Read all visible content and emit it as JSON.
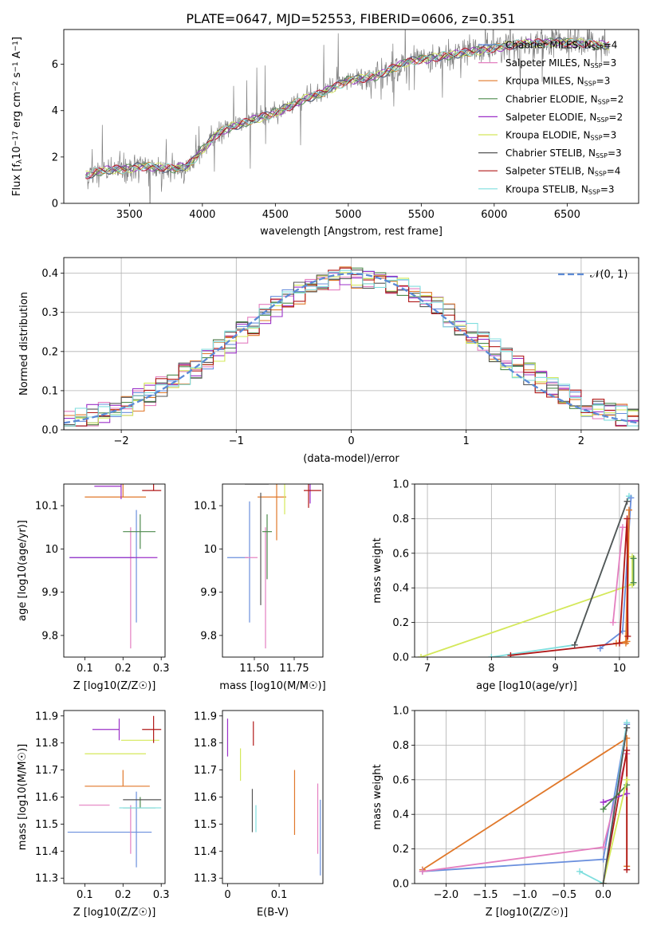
{
  "figure_title": "PLATE=0647, MJD=52553, FIBERID=0606, z=0.351",
  "series": [
    {
      "name": "Chabrier MILES",
      "nssp": "4",
      "color": "#6a8fdd"
    },
    {
      "name": "Salpeter MILES",
      "nssp": "3",
      "color": "#e47fc0"
    },
    {
      "name": "Kroupa MILES",
      "nssp": "3",
      "color": "#e0782a"
    },
    {
      "name": "Chabrier ELODIE",
      "nssp": "2",
      "color": "#4d8a4d"
    },
    {
      "name": "Salpeter ELODIE",
      "nssp": "2",
      "color": "#9b30c8"
    },
    {
      "name": "Kroupa ELODIE",
      "nssp": "3",
      "color": "#d4e85a"
    },
    {
      "name": "Chabrier STELIB",
      "nssp": "3",
      "color": "#555555"
    },
    {
      "name": "Salpeter STELIB",
      "nssp": "4",
      "color": "#b01818"
    },
    {
      "name": "Kroupa STELIB",
      "nssp": "3",
      "color": "#7fdede"
    }
  ],
  "spectrum_color": "#808080",
  "chart_data": [
    {
      "id": "spectrum",
      "type": "line",
      "title": "PLATE=0647, MJD=52553, FIBERID=0606, z=0.351",
      "xlabel": "wavelength [Angstrom, rest frame]",
      "ylabel_parts": {
        "pre": "Flux [f",
        "sub1": "λ",
        "mid": "10",
        "sup1": "−17",
        "post1": " erg cm",
        "sup2": "−2",
        "post2": " s",
        "sup3": "−1",
        "post3": " A",
        "sup4": "−1",
        "post4": "]"
      },
      "xlim": [
        3050,
        6990
      ],
      "ylim": [
        0,
        7.5
      ],
      "xticks": [
        3500,
        4000,
        4500,
        5000,
        5500,
        6000,
        6500
      ],
      "yticks": [
        0,
        2,
        4,
        6
      ],
      "legend_placement": "upper right",
      "continuum_knots": {
        "x": [
          3200,
          3300,
          3400,
          3500,
          3600,
          3700,
          3800,
          3900,
          4000,
          4100,
          4200,
          4300,
          4400,
          4500,
          4600,
          4700,
          4800,
          4900,
          5000,
          5100,
          5200,
          5300,
          5400,
          5500,
          5600,
          5700,
          5800,
          5900,
          6000,
          6100,
          6200,
          6300,
          6400,
          6500,
          6600,
          6700,
          6790
        ],
        "y": [
          1.2,
          1.4,
          1.45,
          1.5,
          1.6,
          1.55,
          1.5,
          1.6,
          2.3,
          3.0,
          3.3,
          3.5,
          3.7,
          3.9,
          4.2,
          4.5,
          4.7,
          5.0,
          5.3,
          5.4,
          5.5,
          5.8,
          6.1,
          6.2,
          6.3,
          6.4,
          6.5,
          6.6,
          6.7,
          6.8,
          6.9,
          6.9,
          6.95,
          6.95,
          6.9,
          6.85,
          6.8
        ]
      }
    },
    {
      "id": "residuals",
      "type": "step",
      "xlabel": "(data-model)/error",
      "ylabel": "Normed distribution",
      "xlim": [
        -2.5,
        2.5
      ],
      "ylim": [
        0,
        0.44
      ],
      "xticks": [
        -2,
        -1,
        0,
        1,
        2
      ],
      "yticks": [
        0.0,
        0.1,
        0.2,
        0.3,
        0.4
      ],
      "grid": true,
      "legend": "𝒩(0, 1)",
      "legend_placement": "upper right",
      "bin_width": 0.1,
      "normal": {
        "mu": 0,
        "sigma": 1
      }
    },
    {
      "id": "age_vs_Z",
      "type": "errorbar",
      "xlabel": "Z [log10(Z/Z☉)]",
      "ylabel": "age [log10(age/yr)]",
      "xlim": [
        0.045,
        0.31
      ],
      "ylim": [
        9.75,
        10.15
      ],
      "xticks": [
        0.1,
        0.2,
        0.3
      ],
      "yticks": [
        9.8,
        9.9,
        10.0,
        10.1
      ],
      "points": [
        {
          "s": 0,
          "x": 0.17,
          "xe": [
            0.11,
            0.06
          ],
          "y": 9.98,
          "ye": [
            0.0,
            0.0
          ]
        },
        {
          "s": 0,
          "x": 0.235,
          "xe": [
            0.0,
            0.0
          ],
          "y": 9.96,
          "ye": [
            0.13,
            0.13
          ]
        },
        {
          "s": 1,
          "x": 0.22,
          "xe": [
            0.0,
            0.0
          ],
          "y": 9.91,
          "ye": [
            0.14,
            0.14
          ]
        },
        {
          "s": 2,
          "x": 0.2,
          "xe": [
            0.1,
            0.06
          ],
          "y": 10.12,
          "ye": [
            0.0,
            0.05
          ]
        },
        {
          "s": 3,
          "x": 0.245,
          "xe": [
            0.045,
            0.04
          ],
          "y": 10.04,
          "ye": [
            0.04,
            0.04
          ]
        },
        {
          "s": 4,
          "x": 0.14,
          "xe": [
            0.08,
            0.15
          ],
          "y": 9.98,
          "ye": [
            0.0,
            0.0
          ]
        },
        {
          "s": 4,
          "x": 0.195,
          "xe": [
            0.07,
            0.0
          ],
          "y": 10.145,
          "ye": [
            0.03,
            0.03
          ]
        },
        {
          "s": 5,
          "x": 0.2,
          "xe": [
            0.1,
            0.06
          ],
          "y": 10.165,
          "ye": [
            0.0,
            0.0
          ]
        },
        {
          "s": 6,
          "x": 0.25,
          "xe": [
            0.05,
            0.05
          ],
          "y": 10.155,
          "ye": [
            0.0,
            0.0
          ]
        },
        {
          "s": 7,
          "x": 0.28,
          "xe": [
            0.03,
            0.02
          ],
          "y": 10.135,
          "ye": [
            0.0,
            0.04
          ]
        },
        {
          "s": 8,
          "x": 0.25,
          "xe": [
            0.06,
            0.05
          ],
          "y": 10.17,
          "ye": [
            0.0,
            0.0
          ]
        }
      ]
    },
    {
      "id": "age_vs_mass",
      "type": "errorbar",
      "xlabel": "mass [log10(M/M☉)]",
      "ylabel": "",
      "xlim": [
        11.3,
        11.93
      ],
      "ylim": [
        9.75,
        10.15
      ],
      "xticks": [
        11.5,
        11.75
      ],
      "xtick_labels": [
        "11.50",
        "11.75"
      ],
      "yticks": [
        9.8,
        9.9,
        10.0,
        10.1
      ],
      "points": [
        {
          "s": 0,
          "x": 11.47,
          "xe": [
            0.0,
            0.0
          ],
          "y": 9.98,
          "ye": [
            0.15,
            0.13
          ]
        },
        {
          "s": 0,
          "x": 11.46,
          "xe": [
            0.13,
            0.0
          ],
          "y": 9.98,
          "ye": [
            0.0,
            0.0
          ]
        },
        {
          "s": 1,
          "x": 11.57,
          "xe": [
            0.0,
            0.0
          ],
          "y": 9.91,
          "ye": [
            0.14,
            0.14
          ]
        },
        {
          "s": 1,
          "x": 11.52,
          "xe": [
            0.08,
            0.0
          ],
          "y": 9.98,
          "ye": [
            0.0,
            0.0
          ]
        },
        {
          "s": 2,
          "x": 11.64,
          "xe": [
            0.12,
            0.06
          ],
          "y": 10.12,
          "ye": [
            0.1,
            0.05
          ]
        },
        {
          "s": 3,
          "x": 11.58,
          "xe": [
            0.03,
            0.03
          ],
          "y": 10.04,
          "ye": [
            0.11,
            0.04
          ]
        },
        {
          "s": 4,
          "x": 11.85,
          "xe": [
            0.0,
            0.0
          ],
          "y": 10.145,
          "ye": [
            0.04,
            0.03
          ]
        },
        {
          "s": 5,
          "x": 11.76,
          "xe": [
            0.08,
            0.0
          ],
          "y": 10.165,
          "ye": [
            0.0,
            0.0
          ]
        },
        {
          "s": 5,
          "x": 11.69,
          "xe": [
            0.0,
            0.0
          ],
          "y": 10.12,
          "ye": [
            0.04,
            0.04
          ]
        },
        {
          "s": 6,
          "x": 11.59,
          "xe": [
            0.15,
            0.0
          ],
          "y": 10.15,
          "ye": [
            0.0,
            0.0
          ]
        },
        {
          "s": 6,
          "x": 11.54,
          "xe": [
            0.0,
            0.0
          ],
          "y": 10.0,
          "ye": [
            0.13,
            0.13
          ]
        },
        {
          "s": 7,
          "x": 11.84,
          "xe": [
            0.03,
            0.08
          ],
          "y": 10.135,
          "ye": [
            0.04,
            0.02
          ]
        },
        {
          "s": 8,
          "x": 11.82,
          "xe": [
            0.06,
            0.0
          ],
          "y": 10.17,
          "ye": [
            0.0,
            0.0
          ]
        }
      ]
    },
    {
      "id": "weight_vs_age",
      "type": "line",
      "xlabel": "age [log10(age/yr)]",
      "ylabel": "mass weight",
      "xlim": [
        6.8,
        10.3
      ],
      "ylim": [
        0,
        1.0
      ],
      "xticks": [
        7,
        8,
        9,
        10
      ],
      "yticks": [
        0.0,
        0.2,
        0.4,
        0.6,
        0.8,
        1.0
      ],
      "grid": true,
      "lines": [
        {
          "s": 5,
          "x": [
            6.9,
            10.2
          ],
          "y": [
            0.0,
            0.42
          ]
        },
        {
          "s": 5,
          "x": [
            10.2,
            10.2
          ],
          "y": [
            0.42,
            0.58
          ]
        },
        {
          "s": 3,
          "x": [
            10.22,
            10.22
          ],
          "y": [
            0.43,
            0.57
          ]
        },
        {
          "s": 8,
          "x": [
            8.0,
            9.3,
            10.15
          ],
          "y": [
            0.0,
            0.07,
            0.93
          ]
        },
        {
          "s": 0,
          "x": [
            9.7,
            10.05,
            10.18
          ],
          "y": [
            0.05,
            0.15,
            0.92
          ]
        },
        {
          "s": 1,
          "x": [
            9.9,
            10.05
          ],
          "y": [
            0.2,
            0.75
          ]
        },
        {
          "s": 2,
          "x": [
            9.95,
            10.12,
            10.15,
            10.1
          ],
          "y": [
            0.08,
            0.09,
            0.85,
            0.08
          ]
        },
        {
          "s": 7,
          "x": [
            8.3,
            10.0,
            10.12,
            10.13
          ],
          "y": [
            0.01,
            0.08,
            0.8,
            0.12
          ]
        },
        {
          "s": 6,
          "x": [
            9.3,
            10.12
          ],
          "y": [
            0.07,
            0.9
          ]
        }
      ]
    },
    {
      "id": "mass_vs_Z",
      "type": "errorbar",
      "xlabel": "Z [log10(Z/Z☉)]",
      "ylabel": "mass [log10(M/M☉)]",
      "xlim": [
        0.045,
        0.31
      ],
      "ylim": [
        11.28,
        11.92
      ],
      "xticks": [
        0.1,
        0.2,
        0.3
      ],
      "yticks": [
        11.3,
        11.4,
        11.5,
        11.6,
        11.7,
        11.8,
        11.9
      ],
      "points": [
        {
          "s": 0,
          "x": 0.175,
          "xe": [
            0.12,
            0.1
          ],
          "y": 11.47,
          "ye": [
            0.0,
            0.0
          ]
        },
        {
          "s": 0,
          "x": 0.235,
          "xe": [
            0.0,
            0.0
          ],
          "y": 11.48,
          "ye": [
            0.14,
            0.14
          ]
        },
        {
          "s": 1,
          "x": 0.22,
          "xe": [
            0.0,
            0.0
          ],
          "y": 11.57,
          "ye": [
            0.18,
            0.0
          ]
        },
        {
          "s": 1,
          "x": 0.165,
          "xe": [
            0.08,
            0.0
          ],
          "y": 11.57,
          "ye": [
            0.0,
            0.0
          ]
        },
        {
          "s": 2,
          "x": 0.2,
          "xe": [
            0.1,
            0.07
          ],
          "y": 11.64,
          "ye": [
            0.0,
            0.06
          ]
        },
        {
          "s": 3,
          "x": 0.245,
          "xe": [
            0.045,
            0.04
          ],
          "y": 11.56,
          "ye": [
            0.0,
            0.04
          ]
        },
        {
          "s": 4,
          "x": 0.19,
          "xe": [
            0.07,
            0.0
          ],
          "y": 11.85,
          "ye": [
            0.04,
            0.04
          ]
        },
        {
          "s": 5,
          "x": 0.2,
          "xe": [
            0.1,
            0.06
          ],
          "y": 11.76,
          "ye": [
            0.0,
            0.0
          ]
        },
        {
          "s": 5,
          "x": 0.255,
          "xe": [
            0.06,
            0.04
          ],
          "y": 11.81,
          "ye": [
            0.0,
            0.0
          ]
        },
        {
          "s": 6,
          "x": 0.25,
          "xe": [
            0.05,
            0.05
          ],
          "y": 11.59,
          "ye": [
            0.0,
            0.0
          ]
        },
        {
          "s": 7,
          "x": 0.28,
          "xe": [
            0.03,
            0.02
          ],
          "y": 11.85,
          "ye": [
            0.05,
            0.05
          ]
        },
        {
          "s": 8,
          "x": 0.25,
          "xe": [
            0.06,
            0.05
          ],
          "y": 11.56,
          "ye": [
            0.0,
            0.0
          ]
        }
      ]
    },
    {
      "id": "mass_vs_EBV",
      "type": "errorbar",
      "xlabel": "E(B-V)",
      "ylabel": "",
      "xlim": [
        -0.01,
        0.185
      ],
      "ylim": [
        11.28,
        11.92
      ],
      "xticks": [
        0.0,
        0.1
      ],
      "yticks": [
        11.3,
        11.4,
        11.5,
        11.6,
        11.7,
        11.8,
        11.9
      ],
      "points": [
        {
          "s": 4,
          "x": 0.0,
          "xe": [
            0,
            0
          ],
          "y": 11.82,
          "ye": [
            0.07,
            0.07
          ]
        },
        {
          "s": 5,
          "x": 0.025,
          "xe": [
            0,
            0
          ],
          "y": 11.72,
          "ye": [
            0.06,
            0.06
          ]
        },
        {
          "s": 7,
          "x": 0.05,
          "xe": [
            0,
            0
          ],
          "y": 11.84,
          "ye": [
            0.05,
            0.04
          ]
        },
        {
          "s": 6,
          "x": 0.048,
          "xe": [
            0,
            0
          ],
          "y": 11.55,
          "ye": [
            0.08,
            0.08
          ]
        },
        {
          "s": 8,
          "x": 0.055,
          "xe": [
            0,
            0
          ],
          "y": 11.52,
          "ye": [
            0.05,
            0.05
          ]
        },
        {
          "s": 2,
          "x": 0.13,
          "xe": [
            0,
            0
          ],
          "y": 11.58,
          "ye": [
            0.12,
            0.12
          ]
        },
        {
          "s": 1,
          "x": 0.175,
          "xe": [
            0,
            0
          ],
          "y": 11.52,
          "ye": [
            0.13,
            0.13
          ]
        },
        {
          "s": 0,
          "x": 0.18,
          "xe": [
            0,
            0
          ],
          "y": 11.45,
          "ye": [
            0.14,
            0.14
          ]
        }
      ]
    },
    {
      "id": "weight_vs_Z",
      "type": "line",
      "xlabel": "Z [log10(Z/Z☉)]",
      "ylabel": "mass weight",
      "xlim": [
        -2.4,
        0.45
      ],
      "ylim": [
        0,
        1.0
      ],
      "xticks": [
        -2.0,
        -1.5,
        -1.0,
        -0.5,
        0.0
      ],
      "xtick_labels": [
        "−2.0",
        "−1.5",
        "−1.0",
        "−0.5",
        "0.0"
      ],
      "yticks": [
        0.0,
        0.2,
        0.4,
        0.6,
        0.8,
        1.0
      ],
      "grid": true,
      "lines": [
        {
          "s": 2,
          "x": [
            -2.3,
            0.3,
            0.3
          ],
          "y": [
            0.08,
            0.84,
            0.1
          ]
        },
        {
          "s": 0,
          "x": [
            -2.3,
            0.0,
            0.3
          ],
          "y": [
            0.07,
            0.14,
            0.92
          ]
        },
        {
          "s": 1,
          "x": [
            -2.3,
            0.0,
            0.3
          ],
          "y": [
            0.07,
            0.21,
            0.75
          ]
        },
        {
          "s": 8,
          "x": [
            -0.3,
            0.0,
            0.3
          ],
          "y": [
            0.07,
            0.0,
            0.93
          ]
        },
        {
          "s": 7,
          "x": [
            0.0,
            0.3,
            0.3
          ],
          "y": [
            0.0,
            0.77,
            0.08
          ]
        },
        {
          "s": 4,
          "x": [
            0.0,
            0.3
          ],
          "y": [
            0.47,
            0.52
          ]
        },
        {
          "s": 3,
          "x": [
            0.0,
            0.3
          ],
          "y": [
            0.43,
            0.57
          ]
        },
        {
          "s": 5,
          "x": [
            0.0,
            0.3
          ],
          "y": [
            0.0,
            0.6
          ]
        },
        {
          "s": 6,
          "x": [
            0.0,
            0.3
          ],
          "y": [
            0.0,
            0.9
          ]
        }
      ]
    }
  ]
}
